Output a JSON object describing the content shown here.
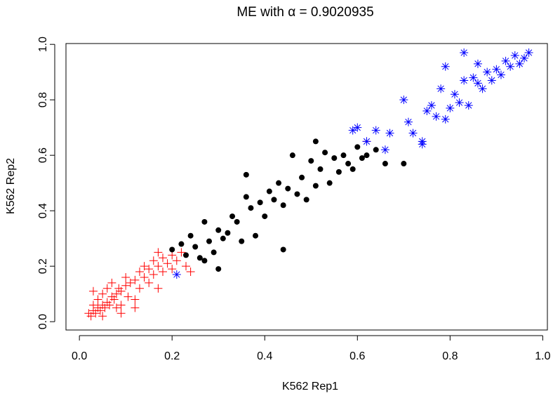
{
  "chart_data": {
    "type": "scatter",
    "title": "ME with  α = 0.9020935",
    "x_label": "K562 Rep1",
    "y_label": "K562 Rep2",
    "xlim": [
      -0.029,
      1.01
    ],
    "ylim": [
      -0.03,
      1.003
    ],
    "xticks": [
      {
        "value": 0,
        "label": "0.0"
      },
      0.2,
      0.4,
      0.6,
      0.8,
      {
        "value": 1,
        "label": "1.0"
      }
    ],
    "yticks": [
      {
        "value": 0,
        "label": "0.0"
      },
      0.2,
      0.4,
      0.6,
      0.8,
      {
        "value": 1,
        "label": "1.0"
      }
    ],
    "series": [
      {
        "marker": "plus",
        "color": "#ff0000",
        "x": [
          0.02,
          0.025,
          0.03,
          0.03,
          0.035,
          0.04,
          0.04,
          0.045,
          0.05,
          0.05,
          0.055,
          0.06,
          0.06,
          0.065,
          0.07,
          0.07,
          0.075,
          0.08,
          0.08,
          0.085,
          0.09,
          0.09,
          0.1,
          0.1,
          0.105,
          0.11,
          0.12,
          0.12,
          0.13,
          0.13,
          0.14,
          0.14,
          0.15,
          0.15,
          0.16,
          0.16,
          0.17,
          0.17,
          0.18,
          0.18,
          0.19,
          0.2,
          0.2,
          0.21,
          0.22,
          0.23,
          0.24,
          0.03,
          0.05,
          0.09,
          0.12,
          0.17,
          0.62
        ],
        "values": [
          0.03,
          0.02,
          0.04,
          0.06,
          0.03,
          0.05,
          0.08,
          0.04,
          0.06,
          0.1,
          0.05,
          0.07,
          0.12,
          0.06,
          0.09,
          0.14,
          0.08,
          0.1,
          0.05,
          0.12,
          0.11,
          0.03,
          0.13,
          0.16,
          0.09,
          0.14,
          0.15,
          0.08,
          0.18,
          0.12,
          0.16,
          0.2,
          0.19,
          0.14,
          0.22,
          0.17,
          0.2,
          0.25,
          0.23,
          0.18,
          0.21,
          0.24,
          0.19,
          0.22,
          0.25,
          0.2,
          0.18,
          0.11,
          0.02,
          0.06,
          0.05,
          0.12,
          0.65
        ]
      },
      {
        "marker": "dot",
        "color": "#000000",
        "x": [
          0.2,
          0.22,
          0.23,
          0.24,
          0.25,
          0.26,
          0.27,
          0.28,
          0.29,
          0.3,
          0.3,
          0.31,
          0.32,
          0.33,
          0.34,
          0.35,
          0.36,
          0.37,
          0.38,
          0.39,
          0.4,
          0.41,
          0.42,
          0.43,
          0.44,
          0.45,
          0.46,
          0.47,
          0.48,
          0.49,
          0.5,
          0.51,
          0.52,
          0.53,
          0.54,
          0.55,
          0.56,
          0.57,
          0.58,
          0.59,
          0.6,
          0.61,
          0.62,
          0.64,
          0.66,
          0.7,
          0.44,
          0.36,
          0.27,
          0.51
        ],
        "values": [
          0.26,
          0.28,
          0.24,
          0.31,
          0.27,
          0.23,
          0.36,
          0.29,
          0.25,
          0.33,
          0.19,
          0.3,
          0.32,
          0.38,
          0.36,
          0.29,
          0.45,
          0.41,
          0.31,
          0.43,
          0.38,
          0.47,
          0.44,
          0.5,
          0.42,
          0.48,
          0.6,
          0.46,
          0.52,
          0.44,
          0.58,
          0.49,
          0.55,
          0.61,
          0.5,
          0.59,
          0.54,
          0.6,
          0.57,
          0.55,
          0.63,
          0.59,
          0.6,
          0.62,
          0.57,
          0.57,
          0.26,
          0.53,
          0.22,
          0.65
        ]
      },
      {
        "marker": "asterisk",
        "color": "#0000ff",
        "x": [
          0.59,
          0.6,
          0.62,
          0.64,
          0.66,
          0.67,
          0.7,
          0.71,
          0.72,
          0.74,
          0.75,
          0.76,
          0.77,
          0.78,
          0.79,
          0.8,
          0.81,
          0.82,
          0.83,
          0.84,
          0.85,
          0.86,
          0.87,
          0.88,
          0.89,
          0.9,
          0.91,
          0.92,
          0.93,
          0.94,
          0.95,
          0.96,
          0.97,
          0.79,
          0.83,
          0.86,
          0.74,
          0.21
        ],
        "values": [
          0.69,
          0.7,
          0.65,
          0.69,
          0.62,
          0.68,
          0.8,
          0.72,
          0.68,
          0.65,
          0.76,
          0.78,
          0.74,
          0.84,
          0.92,
          0.77,
          0.82,
          0.79,
          0.97,
          0.78,
          0.88,
          0.86,
          0.84,
          0.9,
          0.87,
          0.91,
          0.89,
          0.94,
          0.92,
          0.96,
          0.93,
          0.95,
          0.97,
          0.73,
          0.87,
          0.93,
          0.64,
          0.17
        ]
      }
    ]
  }
}
